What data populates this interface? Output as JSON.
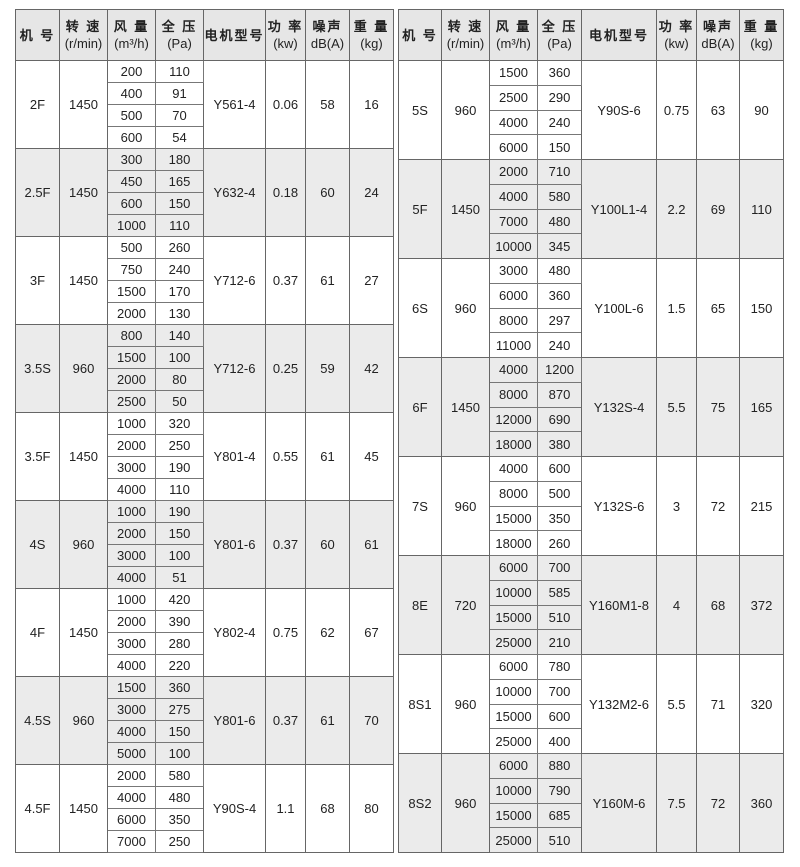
{
  "headers": {
    "model": "机 号",
    "speed": "转 速",
    "speed_unit": "(r/min)",
    "flow": "风 量",
    "flow_unit": "(m³/h)",
    "pressure": "全 压",
    "pressure_unit": "(Pa)",
    "motor": "电机型号",
    "power": "功 率",
    "power_unit": "(kw)",
    "noise": "噪声",
    "noise_unit": "dB(A)",
    "weight": "重 量",
    "weight_unit": "(kg)"
  },
  "left": [
    {
      "model": "2F",
      "speed": "1450",
      "flow": [
        "200",
        "400",
        "500",
        "600"
      ],
      "pressure": [
        "110",
        "91",
        "70",
        "54"
      ],
      "motor": "Y561-4",
      "power": "0.06",
      "noise": "58",
      "weight": "16"
    },
    {
      "model": "2.5F",
      "speed": "1450",
      "flow": [
        "300",
        "450",
        "600",
        "1000"
      ],
      "pressure": [
        "180",
        "165",
        "150",
        "110"
      ],
      "motor": "Y632-4",
      "power": "0.18",
      "noise": "60",
      "weight": "24"
    },
    {
      "model": "3F",
      "speed": "1450",
      "flow": [
        "500",
        "750",
        "1500",
        "2000"
      ],
      "pressure": [
        "260",
        "240",
        "170",
        "130"
      ],
      "motor": "Y712-6",
      "power": "0.37",
      "noise": "61",
      "weight": "27"
    },
    {
      "model": "3.5S",
      "speed": "960",
      "flow": [
        "800",
        "1500",
        "2000",
        "2500"
      ],
      "pressure": [
        "140",
        "100",
        "80",
        "50"
      ],
      "motor": "Y712-6",
      "power": "0.25",
      "noise": "59",
      "weight": "42"
    },
    {
      "model": "3.5F",
      "speed": "1450",
      "flow": [
        "1000",
        "2000",
        "3000",
        "4000"
      ],
      "pressure": [
        "320",
        "250",
        "190",
        "110"
      ],
      "motor": "Y801-4",
      "power": "0.55",
      "noise": "61",
      "weight": "45"
    },
    {
      "model": "4S",
      "speed": "960",
      "flow": [
        "1000",
        "2000",
        "3000",
        "4000"
      ],
      "pressure": [
        "190",
        "150",
        "100",
        "51"
      ],
      "motor": "Y801-6",
      "power": "0.37",
      "noise": "60",
      "weight": "61"
    },
    {
      "model": "4F",
      "speed": "1450",
      "flow": [
        "1000",
        "2000",
        "3000",
        "4000"
      ],
      "pressure": [
        "420",
        "390",
        "280",
        "220"
      ],
      "motor": "Y802-4",
      "power": "0.75",
      "noise": "62",
      "weight": "67"
    },
    {
      "model": "4.5S",
      "speed": "960",
      "flow": [
        "1500",
        "3000",
        "4000",
        "5000"
      ],
      "pressure": [
        "360",
        "275",
        "150",
        "100"
      ],
      "motor": "Y801-6",
      "power": "0.37",
      "noise": "61",
      "weight": "70"
    },
    {
      "model": "4.5F",
      "speed": "1450",
      "flow": [
        "2000",
        "4000",
        "6000",
        "7000"
      ],
      "pressure": [
        "580",
        "480",
        "350",
        "250"
      ],
      "motor": "Y90S-4",
      "power": "1.1",
      "noise": "68",
      "weight": "80"
    }
  ],
  "right": [
    {
      "model": "5S",
      "speed": "960",
      "flow": [
        "1500",
        "2500",
        "4000",
        "6000"
      ],
      "pressure": [
        "360",
        "290",
        "240",
        "150"
      ],
      "motor": "Y90S-6",
      "power": "0.75",
      "noise": "63",
      "weight": "90"
    },
    {
      "model": "5F",
      "speed": "1450",
      "flow": [
        "2000",
        "4000",
        "7000",
        "10000"
      ],
      "pressure": [
        "710",
        "580",
        "480",
        "345"
      ],
      "motor": "Y100L1-4",
      "power": "2.2",
      "noise": "69",
      "weight": "110"
    },
    {
      "model": "6S",
      "speed": "960",
      "flow": [
        "3000",
        "6000",
        "8000",
        "11000"
      ],
      "pressure": [
        "480",
        "360",
        "297",
        "240"
      ],
      "motor": "Y100L-6",
      "power": "1.5",
      "noise": "65",
      "weight": "150"
    },
    {
      "model": "6F",
      "speed": "1450",
      "flow": [
        "4000",
        "8000",
        "12000",
        "18000"
      ],
      "pressure": [
        "1200",
        "870",
        "690",
        "380"
      ],
      "motor": "Y132S-4",
      "power": "5.5",
      "noise": "75",
      "weight": "165"
    },
    {
      "model": "7S",
      "speed": "960",
      "flow": [
        "4000",
        "8000",
        "15000",
        "18000"
      ],
      "pressure": [
        "600",
        "500",
        "350",
        "260"
      ],
      "motor": "Y132S-6",
      "power": "3",
      "noise": "72",
      "weight": "215"
    },
    {
      "model": "8E",
      "speed": "720",
      "flow": [
        "6000",
        "10000",
        "15000",
        "25000"
      ],
      "pressure": [
        "700",
        "585",
        "510",
        "210"
      ],
      "motor": "Y160M1-8",
      "power": "4",
      "noise": "68",
      "weight": "372"
    },
    {
      "model": "8S1",
      "speed": "960",
      "flow": [
        "6000",
        "10000",
        "15000",
        "25000"
      ],
      "pressure": [
        "780",
        "700",
        "600",
        "400"
      ],
      "motor": "Y132M2-6",
      "power": "5.5",
      "noise": "71",
      "weight": "320"
    },
    {
      "model": "8S2",
      "speed": "960",
      "flow": [
        "6000",
        "10000",
        "15000",
        "25000"
      ],
      "pressure": [
        "880",
        "790",
        "685",
        "510"
      ],
      "motor": "Y160M-6",
      "power": "7.5",
      "noise": "72",
      "weight": "360"
    }
  ]
}
